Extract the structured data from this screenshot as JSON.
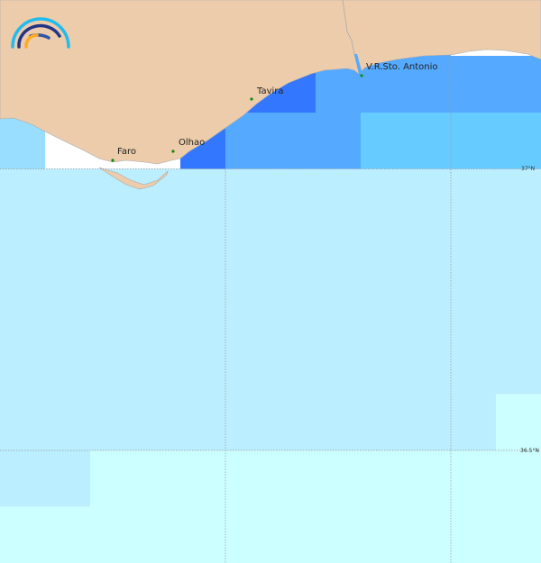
{
  "places": [
    {
      "name": "Faro"
    },
    {
      "name": "Olhao"
    },
    {
      "name": "Tavira"
    },
    {
      "name": "V.R.Sto. Antonio"
    }
  ],
  "lat_labels": [
    "37°N",
    "36.5°N"
  ],
  "colors": {
    "land": "#ecccaa",
    "coast": "#a9a9b0",
    "sea_very_dark": "#3377ff",
    "sea_dark": "#55aaff",
    "sea_mid": "#66ccff",
    "sea_light": "#99ddff",
    "sea_pale": "#bbeeff",
    "sea_palest": "#ccffff",
    "no_data": "#ffffff",
    "grid": "#999999",
    "town": "#118811"
  },
  "logo": {
    "icon": "arc-logo-icon"
  }
}
